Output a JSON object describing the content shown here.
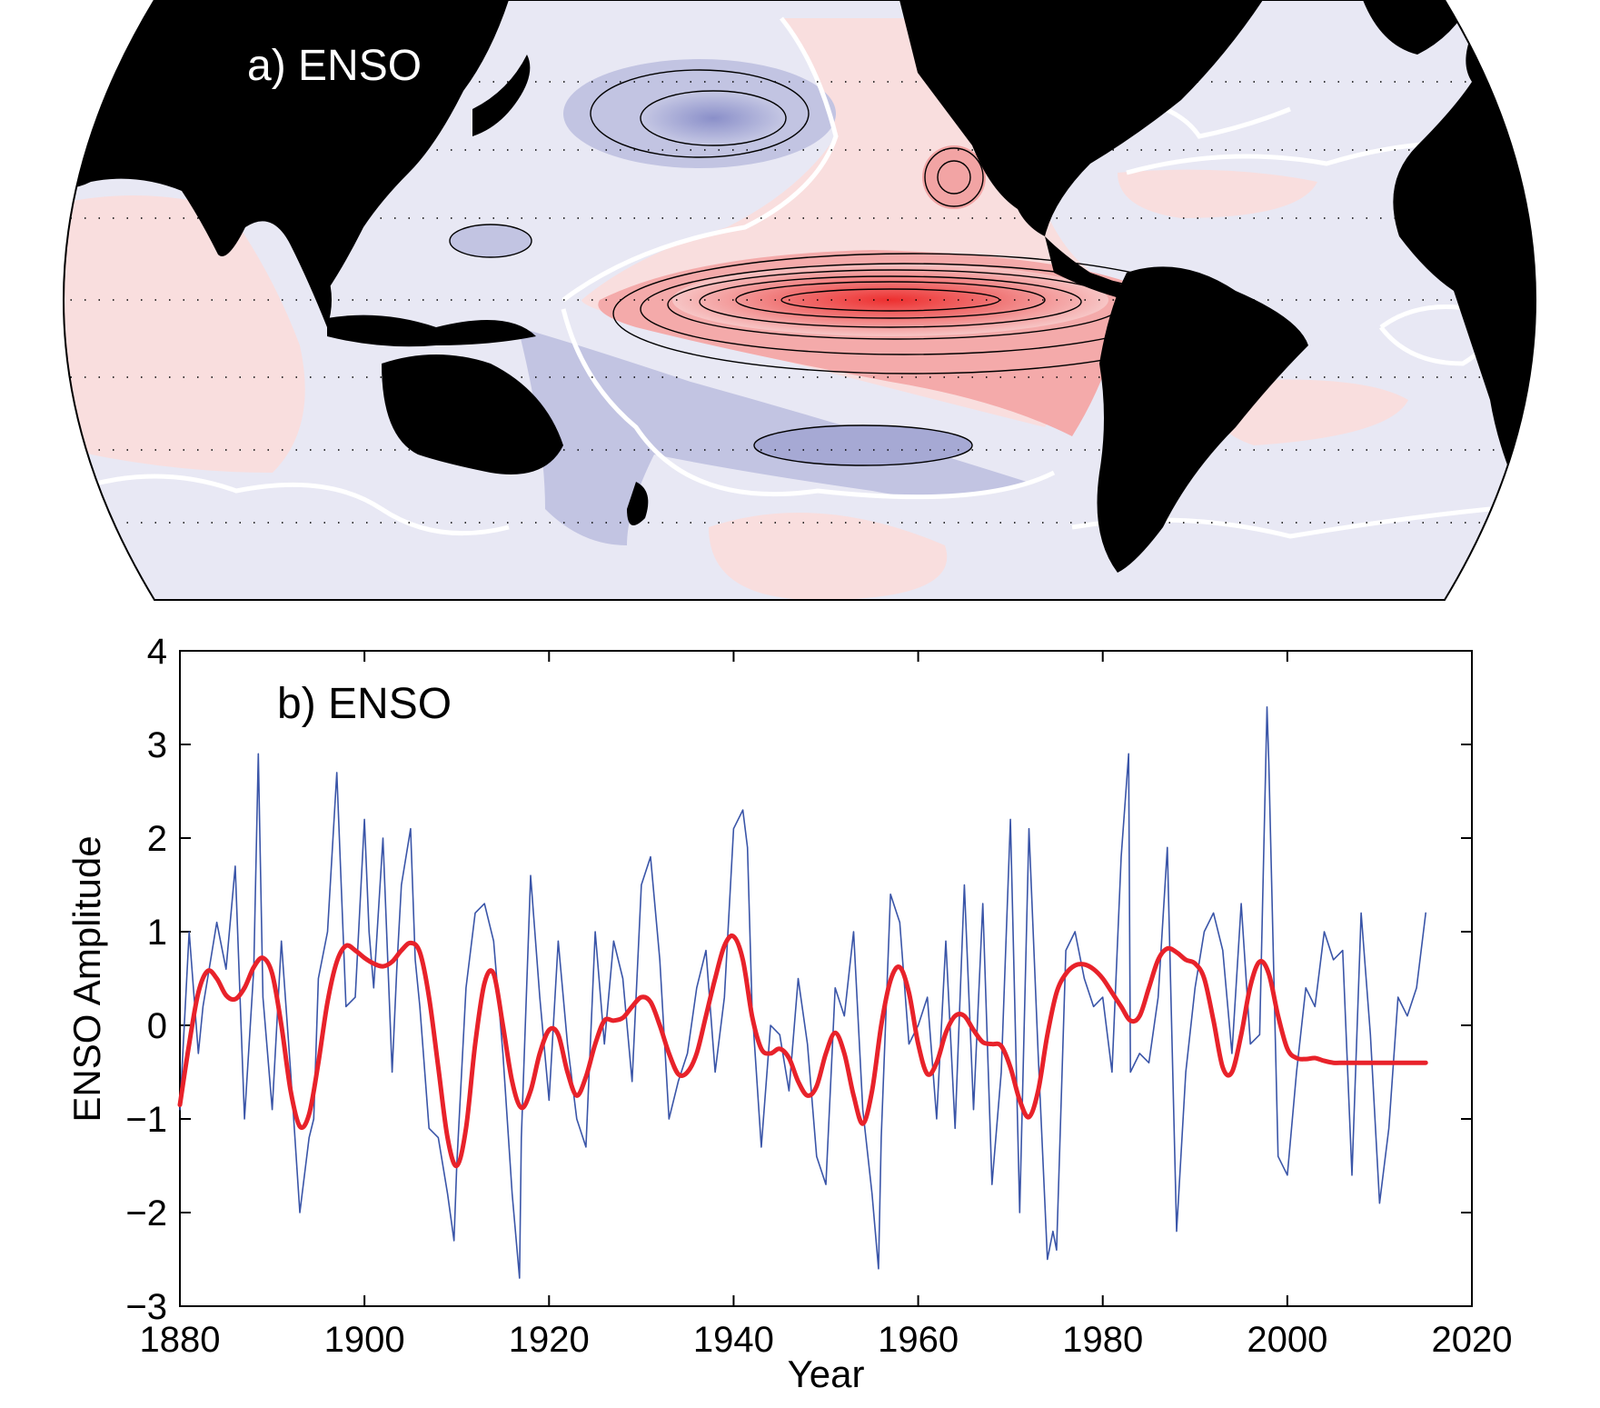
{
  "panel_a": {
    "label": "a) ENSO",
    "colors": {
      "land": "#000000",
      "positive_fill": "#ef3a3a",
      "negative_fill": "#8a8fc9",
      "near_zero_fill": "#e8e8f4",
      "zero_contour": "#ffffff",
      "contour": "#000000"
    }
  },
  "panel_b": {
    "label": "b) ENSO",
    "xlabel": "Year",
    "ylabel": "ENSO Amplitude",
    "x_ticks": [
      "1880",
      "1900",
      "1920",
      "1940",
      "1960",
      "1980",
      "2000",
      "2020"
    ],
    "y_ticks": [
      "4",
      "3",
      "2",
      "1",
      "0",
      "−1",
      "−2",
      "−3"
    ],
    "colors": {
      "monthly": "#3a55a8",
      "smoothed": "#e8222a"
    }
  },
  "chart_data": {
    "type": "line",
    "xlabel": "Year",
    "ylabel": "ENSO Amplitude",
    "xlim": [
      1880,
      2020
    ],
    "ylim": [
      -3,
      4
    ],
    "x_ticks": [
      1880,
      1900,
      1920,
      1940,
      1960,
      1980,
      2000,
      2020
    ],
    "y_ticks": [
      -3,
      -2,
      -1,
      0,
      1,
      2,
      3,
      4
    ],
    "grid": false,
    "series": [
      {
        "style": "thin blue monthly",
        "color": "#3a55a8",
        "x": [
          1880,
          1881,
          1882,
          1882.5,
          1883,
          1884,
          1885,
          1886,
          1887,
          1888,
          1888.5,
          1889,
          1890,
          1891,
          1892,
          1893,
          1894,
          1894.5,
          1895,
          1896,
          1897,
          1898,
          1899,
          1900,
          1900.5,
          1901,
          1902,
          1903,
          1903.5,
          1904,
          1905,
          1905.5,
          1906,
          1907,
          1908,
          1909,
          1909.7,
          1910,
          1911,
          1912,
          1913,
          1914,
          1915,
          1916,
          1916.8,
          1917,
          1918,
          1919,
          1920,
          1921,
          1922,
          1923,
          1924,
          1925,
          1926,
          1927,
          1928,
          1929,
          1930,
          1931,
          1932,
          1933,
          1934,
          1935,
          1936,
          1937,
          1938,
          1939,
          1940,
          1941,
          1941.5,
          1942,
          1943,
          1944,
          1945,
          1946,
          1947,
          1948,
          1949,
          1950,
          1951,
          1952,
          1953,
          1954,
          1955,
          1955.7,
          1956,
          1957,
          1958,
          1959,
          1960,
          1961,
          1962,
          1963,
          1964,
          1965,
          1966,
          1967,
          1968,
          1969,
          1970,
          1971,
          1972,
          1973,
          1974,
          1974.6,
          1975,
          1976,
          1977,
          1978,
          1979,
          1980,
          1981,
          1982,
          1982.8,
          1983,
          1984,
          1985,
          1986,
          1987,
          1988,
          1989,
          1990,
          1991,
          1992,
          1993,
          1994,
          1995,
          1996,
          1997,
          1997.8,
          1998,
          1999,
          2000,
          2001,
          2002,
          2003,
          2004,
          2005,
          2006,
          2007,
          2008,
          2009,
          2010,
          2011,
          2012,
          2013,
          2014,
          2015
        ],
        "y": [
          -0.9,
          1.0,
          -0.3,
          0.2,
          0.5,
          1.1,
          0.6,
          1.7,
          -1.0,
          0.6,
          2.9,
          0.3,
          -0.9,
          0.9,
          -0.5,
          -2.0,
          -1.2,
          -1.0,
          0.5,
          1.0,
          2.7,
          0.2,
          0.3,
          2.2,
          1.0,
          0.4,
          2.0,
          -0.5,
          0.6,
          1.5,
          2.1,
          0.7,
          0.2,
          -1.1,
          -1.2,
          -1.8,
          -2.3,
          -1.5,
          0.4,
          1.2,
          1.3,
          0.9,
          -0.3,
          -1.8,
          -2.7,
          -1.2,
          1.6,
          0.3,
          -0.8,
          0.9,
          -0.2,
          -1.0,
          -1.3,
          1.0,
          -0.2,
          0.9,
          0.5,
          -0.6,
          1.5,
          1.8,
          0.7,
          -1.0,
          -0.6,
          -0.3,
          0.4,
          0.8,
          -0.5,
          0.3,
          2.1,
          2.3,
          1.9,
          0.2,
          -1.3,
          0.0,
          -0.1,
          -0.7,
          0.5,
          -0.2,
          -1.4,
          -1.7,
          0.4,
          0.1,
          1.0,
          -0.9,
          -1.8,
          -2.6,
          -1.2,
          1.4,
          1.1,
          -0.2,
          0.0,
          0.3,
          -1.0,
          0.9,
          -1.1,
          1.5,
          -0.9,
          1.3,
          -1.7,
          -0.5,
          2.2,
          -2.0,
          2.1,
          -0.3,
          -2.5,
          -2.2,
          -2.4,
          0.8,
          1.0,
          0.5,
          0.2,
          0.3,
          -0.5,
          1.8,
          2.9,
          -0.5,
          -0.3,
          -0.4,
          0.3,
          1.9,
          -2.2,
          -0.5,
          0.4,
          1.0,
          1.2,
          0.8,
          -0.3,
          1.3,
          -0.2,
          -0.1,
          3.4,
          2.8,
          -1.4,
          -1.6,
          -0.5,
          0.4,
          0.2,
          1.0,
          0.7,
          0.8,
          -1.6,
          1.2,
          -0.1,
          -1.9,
          -1.1,
          0.3,
          0.1,
          0.4,
          1.2
        ]
      },
      {
        "style": "thick red smoothed",
        "color": "#e8222a",
        "x": [
          1880,
          1881,
          1882,
          1883,
          1884,
          1885,
          1886,
          1887,
          1888,
          1889,
          1890,
          1891,
          1892,
          1893,
          1894,
          1895,
          1896,
          1897,
          1898,
          1899,
          1900,
          1901,
          1902,
          1903,
          1904,
          1905,
          1906,
          1907,
          1908,
          1909,
          1910,
          1911,
          1912,
          1913,
          1914,
          1915,
          1916,
          1917,
          1918,
          1919,
          1920,
          1921,
          1922,
          1923,
          1924,
          1925,
          1926,
          1927,
          1928,
          1929,
          1930,
          1931,
          1932,
          1933,
          1934,
          1935,
          1936,
          1937,
          1938,
          1939,
          1940,
          1941,
          1942,
          1943,
          1944,
          1945,
          1946,
          1947,
          1948,
          1949,
          1950,
          1951,
          1952,
          1953,
          1954,
          1955,
          1956,
          1957,
          1958,
          1959,
          1960,
          1961,
          1962,
          1963,
          1964,
          1965,
          1966,
          1967,
          1968,
          1969,
          1970,
          1971,
          1972,
          1973,
          1974,
          1975,
          1976,
          1977,
          1978,
          1979,
          1980,
          1981,
          1982,
          1983,
          1984,
          1985,
          1986,
          1987,
          1988,
          1989,
          1990,
          1991,
          1992,
          1993,
          1994,
          1995,
          1996,
          1997,
          1998,
          1999,
          2000,
          2001,
          2002,
          2003,
          2004,
          2005,
          2006,
          2007,
          2008,
          2009,
          2010,
          2011,
          2012,
          2013,
          2014,
          2015
        ],
        "y": [
          -0.85,
          -0.2,
          0.35,
          0.58,
          0.5,
          0.32,
          0.28,
          0.4,
          0.62,
          0.72,
          0.55,
          0.0,
          -0.7,
          -1.08,
          -0.95,
          -0.4,
          0.25,
          0.68,
          0.85,
          0.8,
          0.72,
          0.66,
          0.63,
          0.68,
          0.8,
          0.88,
          0.78,
          0.3,
          -0.45,
          -1.2,
          -1.5,
          -1.1,
          -0.2,
          0.45,
          0.55,
          0.0,
          -0.6,
          -0.88,
          -0.7,
          -0.3,
          -0.05,
          -0.1,
          -0.5,
          -0.75,
          -0.55,
          -0.2,
          0.05,
          0.05,
          0.08,
          0.2,
          0.3,
          0.25,
          0.0,
          -0.3,
          -0.52,
          -0.5,
          -0.3,
          0.1,
          0.5,
          0.85,
          0.95,
          0.7,
          0.1,
          -0.25,
          -0.3,
          -0.25,
          -0.35,
          -0.6,
          -0.75,
          -0.65,
          -0.3,
          -0.08,
          -0.3,
          -0.75,
          -1.05,
          -0.7,
          0.0,
          0.48,
          0.62,
          0.35,
          -0.2,
          -0.52,
          -0.4,
          -0.08,
          0.1,
          0.1,
          -0.05,
          -0.18,
          -0.2,
          -0.22,
          -0.45,
          -0.8,
          -0.98,
          -0.7,
          -0.1,
          0.35,
          0.55,
          0.64,
          0.65,
          0.6,
          0.5,
          0.35,
          0.2,
          0.05,
          0.1,
          0.4,
          0.7,
          0.82,
          0.78,
          0.7,
          0.66,
          0.5,
          0.05,
          -0.45,
          -0.5,
          -0.1,
          0.42,
          0.68,
          0.55,
          0.1,
          -0.25,
          -0.35,
          -0.36,
          -0.35,
          -0.38,
          -0.4,
          -0.4,
          -0.4,
          -0.4,
          -0.4,
          -0.4,
          -0.4,
          -0.4,
          -0.4,
          -0.4,
          -0.4
        ]
      }
    ]
  }
}
